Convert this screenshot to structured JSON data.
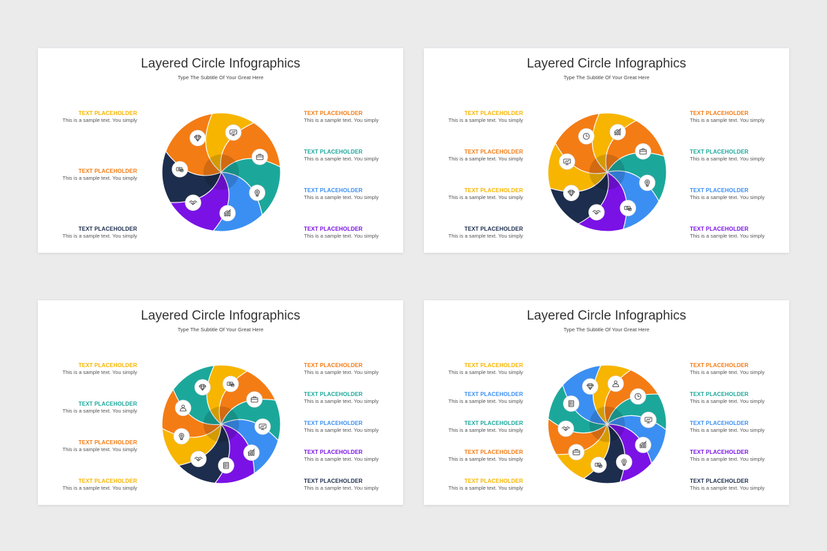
{
  "colors": {
    "yellow": "#f7b500",
    "orange": "#f47c14",
    "teal": "#1ba89b",
    "blue": "#3b8ff2",
    "purple": "#7a12e6",
    "navy": "#1d2d4d"
  },
  "slides": [
    {
      "title": "Layered Circle Infographics",
      "subtitle": "Type The Subtitle Of Your Great Here",
      "segments": [
        {
          "color": "yellow",
          "icon": "presentation-icon"
        },
        {
          "color": "orange",
          "icon": "briefcase-icon"
        },
        {
          "color": "teal",
          "icon": "lightbulb-gear-icon"
        },
        {
          "color": "blue",
          "icon": "growth-chart-icon"
        },
        {
          "color": "purple",
          "icon": "handshake-icon"
        },
        {
          "color": "navy",
          "icon": "money-icon"
        },
        {
          "color": "orange",
          "icon": "diamond-icon"
        }
      ],
      "left_items": [
        {
          "title": "TEXT PLACEHOLDER",
          "text": "This is a sample text. You simply",
          "color": "yellow"
        },
        {
          "title": "TEXT PLACEHOLDER",
          "text": "This is a sample text. You simply",
          "color": "orange"
        },
        {
          "title": "TEXT PLACEHOLDER",
          "text": "This is a sample text. You simply",
          "color": "navy"
        }
      ],
      "right_items": [
        {
          "title": "TEXT PLACEHOLDER",
          "text": "This is a sample text. You simply",
          "color": "orange"
        },
        {
          "title": "TEXT PLACEHOLDER",
          "text": "This is a sample text. You simply",
          "color": "teal"
        },
        {
          "title": "TEXT PLACEHOLDER",
          "text": "This is a sample text. You simply",
          "color": "blue"
        },
        {
          "title": "TEXT PLACEHOLDER",
          "text": "This is a sample text. You simply",
          "color": "purple"
        }
      ]
    },
    {
      "title": "Layered Circle Infographics",
      "subtitle": "Type The Subtitle Of Your Great Here",
      "segments": [
        {
          "color": "yellow",
          "icon": "growth-chart-icon"
        },
        {
          "color": "orange",
          "icon": "briefcase-icon"
        },
        {
          "color": "teal",
          "icon": "lightbulb-gear-icon"
        },
        {
          "color": "blue",
          "icon": "money-icon"
        },
        {
          "color": "purple",
          "icon": "handshake-icon"
        },
        {
          "color": "navy",
          "icon": "diamond-icon"
        },
        {
          "color": "yellow",
          "icon": "presentation-icon"
        },
        {
          "color": "orange",
          "icon": "clock-icon"
        }
      ],
      "left_items": [
        {
          "title": "TEXT PLACEHOLDER",
          "text": "This is a sample text. You simply",
          "color": "yellow"
        },
        {
          "title": "TEXT PLACEHOLDER",
          "text": "This is a sample text. You simply",
          "color": "orange"
        },
        {
          "title": "TEXT PLACEHOLDER",
          "text": "This is a sample text. You simply",
          "color": "yellow"
        },
        {
          "title": "TEXT PLACEHOLDER",
          "text": "This is a sample text. You simply",
          "color": "navy"
        }
      ],
      "right_items": [
        {
          "title": "TEXT PLACEHOLDER",
          "text": "This is a sample text. You simply",
          "color": "orange"
        },
        {
          "title": "TEXT PLACEHOLDER",
          "text": "This is a sample text. You simply",
          "color": "teal"
        },
        {
          "title": "TEXT PLACEHOLDER",
          "text": "This is a sample text. You simply",
          "color": "blue"
        },
        {
          "title": "TEXT PLACEHOLDER",
          "text": "This is a sample text. You simply",
          "color": "purple"
        }
      ]
    },
    {
      "title": "Layered Circle Infographics",
      "subtitle": "Type The Subtitle Of Your Great Here",
      "segments": [
        {
          "color": "yellow",
          "icon": "money-icon"
        },
        {
          "color": "orange",
          "icon": "briefcase-icon"
        },
        {
          "color": "teal",
          "icon": "presentation-icon"
        },
        {
          "color": "blue",
          "icon": "growth-chart-icon"
        },
        {
          "color": "purple",
          "icon": "checklist-icon"
        },
        {
          "color": "navy",
          "icon": "handshake-icon"
        },
        {
          "color": "yellow",
          "icon": "lightbulb-gear-icon"
        },
        {
          "color": "orange",
          "icon": "user-icon"
        },
        {
          "color": "teal",
          "icon": "diamond-icon"
        }
      ],
      "left_items": [
        {
          "title": "TEXT PLACEHOLDER",
          "text": "This is a sample text. You simply",
          "color": "yellow"
        },
        {
          "title": "TEXT PLACEHOLDER",
          "text": "This is a sample text. You simply",
          "color": "teal"
        },
        {
          "title": "TEXT PLACEHOLDER",
          "text": "This is a sample text. You simply",
          "color": "orange"
        },
        {
          "title": "TEXT PLACEHOLDER",
          "text": "This is a sample text. You simply",
          "color": "yellow"
        }
      ],
      "right_items": [
        {
          "title": "TEXT PLACEHOLDER",
          "text": "This is a sample text. You simply",
          "color": "orange"
        },
        {
          "title": "TEXT PLACEHOLDER",
          "text": "This is a sample text. You simply",
          "color": "teal"
        },
        {
          "title": "TEXT PLACEHOLDER",
          "text": "This is a sample text. You simply",
          "color": "blue"
        },
        {
          "title": "TEXT PLACEHOLDER",
          "text": "This is a sample text. You simply",
          "color": "purple"
        },
        {
          "title": "TEXT PLACEHOLDER",
          "text": "This is a sample text. You simply",
          "color": "navy"
        }
      ]
    },
    {
      "title": "Layered Circle Infographics",
      "subtitle": "Type The Subtitle Of Your Great Here",
      "segments": [
        {
          "color": "yellow",
          "icon": "user-icon"
        },
        {
          "color": "orange",
          "icon": "clock-icon"
        },
        {
          "color": "teal",
          "icon": "presentation-icon"
        },
        {
          "color": "blue",
          "icon": "growth-chart-icon"
        },
        {
          "color": "purple",
          "icon": "lightbulb-gear-icon"
        },
        {
          "color": "navy",
          "icon": "money-icon"
        },
        {
          "color": "yellow",
          "icon": "briefcase-icon"
        },
        {
          "color": "orange",
          "icon": "handshake-icon"
        },
        {
          "color": "teal",
          "icon": "checklist-icon"
        },
        {
          "color": "blue",
          "icon": "diamond-icon"
        }
      ],
      "left_items": [
        {
          "title": "TEXT PLACEHOLDER",
          "text": "This is a sample text. You simply",
          "color": "yellow"
        },
        {
          "title": "TEXT PLACEHOLDER",
          "text": "This is a sample text. You simply",
          "color": "blue"
        },
        {
          "title": "TEXT PLACEHOLDER",
          "text": "This is a sample text. You simply",
          "color": "teal"
        },
        {
          "title": "TEXT PLACEHOLDER",
          "text": "This is a sample text. You simply",
          "color": "orange"
        },
        {
          "title": "TEXT PLACEHOLDER",
          "text": "This is a sample text. You simply",
          "color": "yellow"
        }
      ],
      "right_items": [
        {
          "title": "TEXT PLACEHOLDER",
          "text": "This is a sample text. You simply",
          "color": "orange"
        },
        {
          "title": "TEXT PLACEHOLDER",
          "text": "This is a sample text. You simply",
          "color": "teal"
        },
        {
          "title": "TEXT PLACEHOLDER",
          "text": "This is a sample text. You simply",
          "color": "blue"
        },
        {
          "title": "TEXT PLACEHOLDER",
          "text": "This is a sample text. You simply",
          "color": "purple"
        },
        {
          "title": "TEXT PLACEHOLDER",
          "text": "This is a sample text. You simply",
          "color": "navy"
        }
      ]
    }
  ]
}
